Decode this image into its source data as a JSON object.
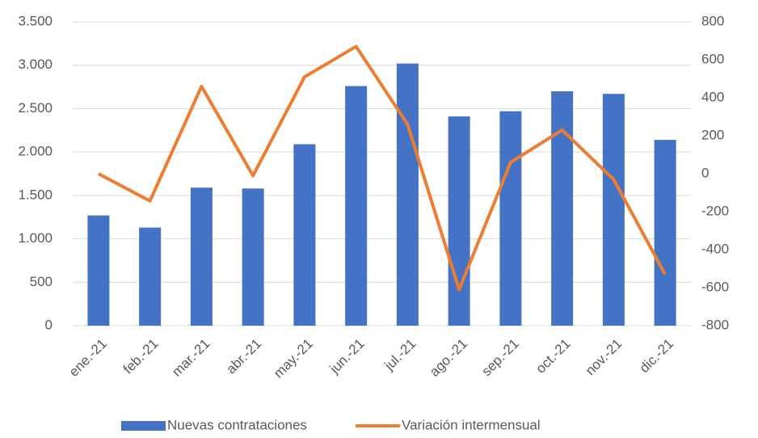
{
  "chart_data": {
    "type": "bar-line",
    "categories": [
      "ene.-21",
      "feb.-21",
      "mar.-21",
      "abr.-21",
      "may.-21",
      "jun.-21",
      "jul.-21",
      "ago.-21",
      "sep.-21",
      "oct.-21",
      "nov.-21",
      "dic.-21"
    ],
    "series": [
      {
        "name": "Nuevas contrataciones",
        "type": "bar",
        "color": "#4472c4",
        "values": [
          1270,
          1130,
          1590,
          1580,
          2090,
          2760,
          3020,
          2410,
          2470,
          2700,
          2670,
          2140
        ]
      },
      {
        "name": "Variación intermensual",
        "type": "line",
        "axis": "y2",
        "color": "#ed7d31",
        "values": [
          0,
          -143,
          460,
          -10,
          510,
          670,
          260,
          -610,
          60,
          230,
          -30,
          -530
        ]
      }
    ],
    "ylim": [
      0,
      3500
    ],
    "yticks": [
      0,
      500,
      {
        "value": 1000,
        "label": "1.000"
      },
      {
        "value": 1500,
        "label": "1.500"
      },
      {
        "value": 2000,
        "label": "2.000"
      },
      {
        "value": 2500,
        "label": "2.500"
      },
      {
        "value": 3000,
        "label": "3.000"
      },
      {
        "value": 3500,
        "label": "3.500"
      }
    ],
    "y2lim": [
      -800,
      800
    ],
    "y2ticks": [
      -800,
      -600,
      -400,
      -200,
      0,
      200,
      400,
      600,
      800
    ],
    "grid": true,
    "legend": "bottom"
  }
}
